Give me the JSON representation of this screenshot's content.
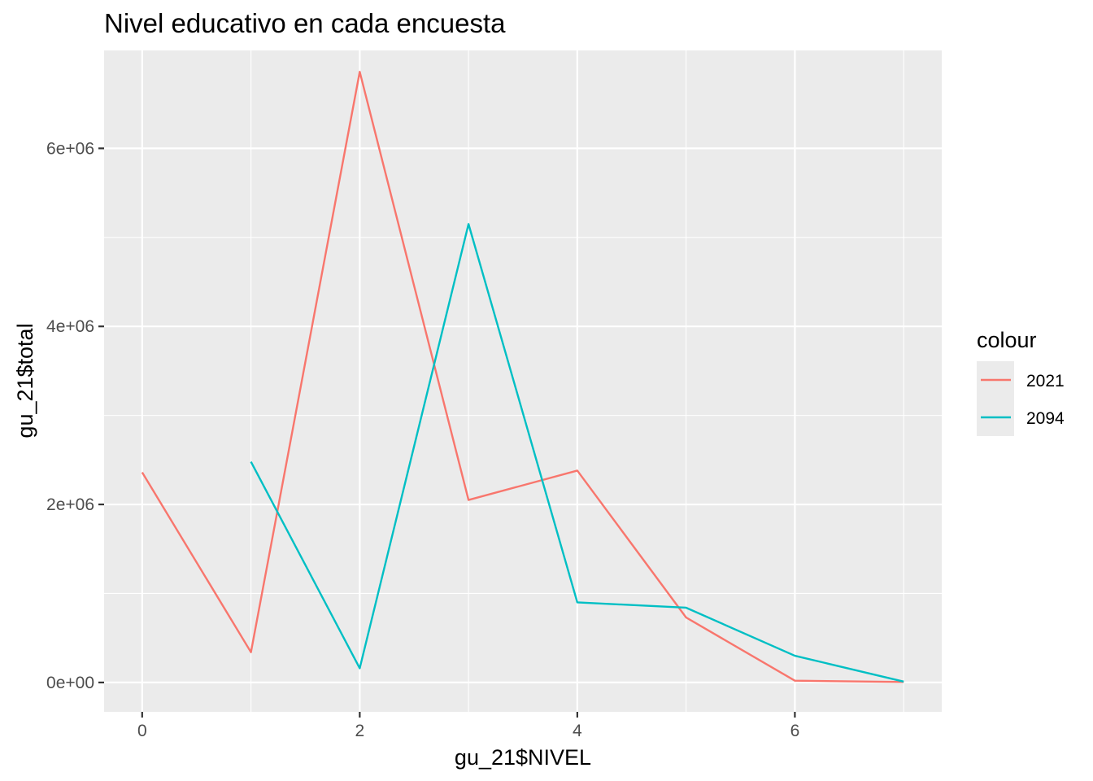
{
  "chart_data": {
    "type": "line",
    "title": "Nivel educativo en cada encuesta",
    "xlabel": "gu_21$NIVEL",
    "ylabel": "gu_21$total",
    "xlim": [
      -0.35,
      7.35
    ],
    "ylim": [
      -330000,
      7100000
    ],
    "x_ticks": [
      0,
      2,
      4,
      6
    ],
    "x_tick_labels": [
      "0",
      "2",
      "4",
      "6"
    ],
    "x_minor_ticks": [
      1,
      3,
      5,
      7
    ],
    "y_ticks": [
      0,
      2000000,
      4000000,
      6000000
    ],
    "y_tick_labels": [
      "0e+00",
      "2e+06",
      "4e+06",
      "6e+06"
    ],
    "y_minor_ticks": [
      1000000,
      3000000,
      5000000
    ],
    "grid": true,
    "legend": {
      "title": "colour",
      "position": "right"
    },
    "series": [
      {
        "name": "2021",
        "color": "#F8766D",
        "x": [
          0,
          1,
          2,
          3,
          4,
          5,
          6,
          7
        ],
        "y": [
          2360000,
          340000,
          6860000,
          2050000,
          2380000,
          730000,
          20000,
          5000
        ]
      },
      {
        "name": "2094",
        "color": "#00BFC4",
        "x": [
          1,
          2,
          3,
          4,
          5,
          6,
          7
        ],
        "y": [
          2480000,
          160000,
          5150000,
          900000,
          840000,
          300000,
          10000
        ]
      }
    ]
  }
}
